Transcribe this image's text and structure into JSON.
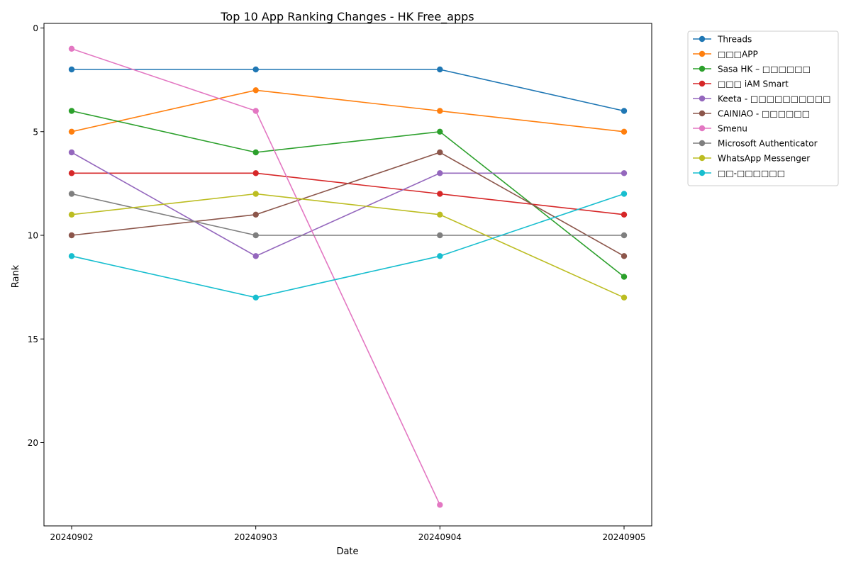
{
  "chart_data": {
    "type": "line",
    "title": "Top 10 App Ranking Changes - HK Free_apps",
    "xlabel": "Date",
    "ylabel": "Rank",
    "x": [
      "20240902",
      "20240903",
      "20240904",
      "20240905"
    ],
    "ylim": [
      24,
      0
    ],
    "y_inverted": true,
    "yticks": [
      0,
      5,
      10,
      15,
      20
    ],
    "grid": false,
    "legend_position": "outside-top-right",
    "series": [
      {
        "name": "Threads",
        "color": "#1f77b4",
        "values": [
          2,
          2,
          2,
          4
        ]
      },
      {
        "name": "□□□APP",
        "color": "#ff7f0e",
        "values": [
          5,
          3,
          4,
          5
        ]
      },
      {
        "name": "Sasa HK – □□□□□□",
        "color": "#2ca02c",
        "values": [
          4,
          6,
          5,
          12
        ]
      },
      {
        "name": "□□□ iAM Smart",
        "color": "#d62728",
        "values": [
          7,
          7,
          8,
          9
        ]
      },
      {
        "name": "Keeta - □□□□□□□□□□",
        "color": "#9467bd",
        "values": [
          6,
          11,
          7,
          7
        ]
      },
      {
        "name": "CAINIAO - □□□□□□",
        "color": "#8c564b",
        "values": [
          10,
          9,
          6,
          11
        ]
      },
      {
        "name": "Smenu",
        "color": "#e377c2",
        "values": [
          1,
          4,
          23,
          null
        ]
      },
      {
        "name": "Microsoft Authenticator",
        "color": "#7f7f7f",
        "values": [
          8,
          10,
          10,
          10
        ]
      },
      {
        "name": "WhatsApp Messenger",
        "color": "#bcbd22",
        "values": [
          9,
          8,
          9,
          13
        ]
      },
      {
        "name": "□□-□□□□□□",
        "color": "#17becf",
        "values": [
          11,
          13,
          11,
          8
        ]
      }
    ]
  }
}
